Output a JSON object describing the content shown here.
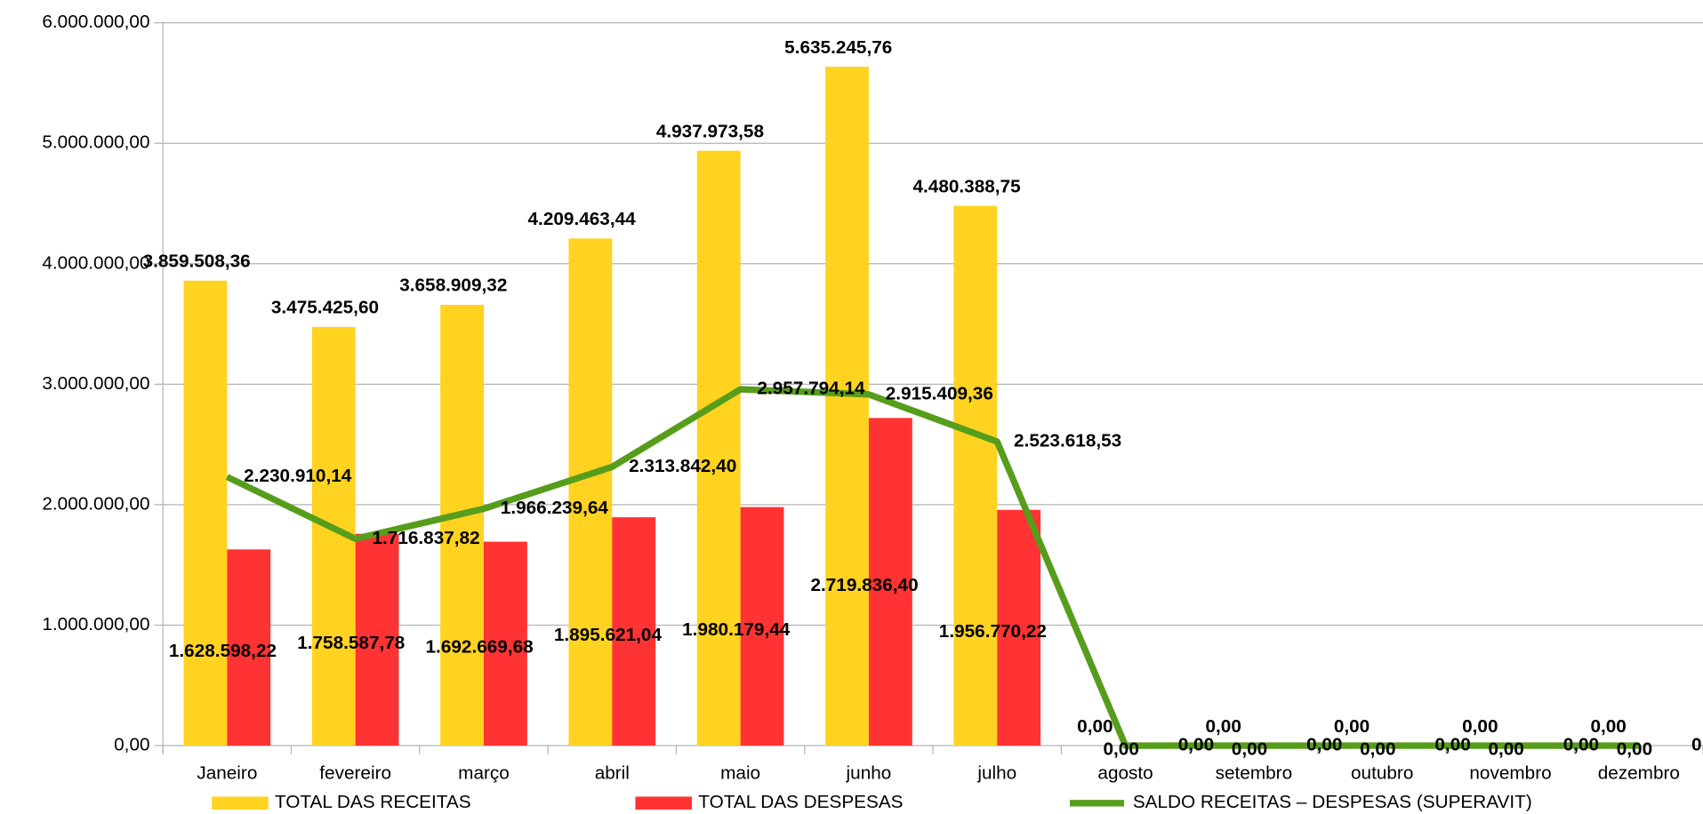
{
  "chart_data": {
    "type": "bar_line",
    "categories": [
      "Janeiro",
      "fevereiro",
      "março",
      "abril",
      "maio",
      "junho",
      "julho",
      "agosto",
      "setembro",
      "outubro",
      "novembro",
      "dezembro"
    ],
    "series": [
      {
        "name": "TOTAL DAS RECEITAS",
        "type": "bar",
        "color": "#ffd320",
        "values": [
          3859508.36,
          3475425.6,
          3658909.32,
          4209463.44,
          4937973.58,
          5635245.76,
          4480388.75,
          0,
          0,
          0,
          0,
          0
        ],
        "value_labels": [
          "3.859.508,36",
          "3.475.425,60",
          "3.658.909,32",
          "4.209.463,44",
          "4.937.973,58",
          "5.635.245,76",
          "4.480.388,75",
          "0,00",
          "0,00",
          "0,00",
          "0,00",
          "0,00"
        ]
      },
      {
        "name": "TOTAL DAS DESPESAS",
        "type": "bar",
        "color": "#ff3333",
        "values": [
          1628598.22,
          1758587.78,
          1692669.68,
          1895621.04,
          1980179.44,
          2719836.4,
          1956770.22,
          0,
          0,
          0,
          0,
          0
        ],
        "value_labels": [
          "1.628.598,22",
          "1.758.587,78",
          "1.692.669,68",
          "1.895.621,04",
          "1.980.179,44",
          "2.719.836,40",
          "1.956.770,22",
          "0,00",
          "0,00",
          "0,00",
          "0,00",
          "0,00"
        ]
      },
      {
        "name": "SALDO RECEITAS – DESPESAS (SUPERAVIT)",
        "type": "line",
        "color": "#579d1c",
        "values": [
          2230910.14,
          1716837.82,
          1966239.64,
          2313842.4,
          2957794.14,
          2915409.36,
          2523618.53,
          0,
          0,
          0,
          0,
          0
        ],
        "value_labels": [
          "2.230.910,14",
          "1.716.837,82",
          "1.966.239,64",
          "2.313.842,40",
          "2.957.794,14",
          "2.915.409,36",
          "2.523.618,53",
          "0,00",
          "0,00",
          "0,00",
          "0,00",
          "0,00"
        ]
      }
    ],
    "ylim": [
      0,
      6000000
    ],
    "yticks": [
      {
        "value": 0,
        "label": "0,00"
      },
      {
        "value": 1000000,
        "label": "1.000.000,00"
      },
      {
        "value": 2000000,
        "label": "2.000.000,00"
      },
      {
        "value": 3000000,
        "label": "3.000.000,00"
      },
      {
        "value": 4000000,
        "label": "4.000.000,00"
      },
      {
        "value": 5000000,
        "label": "5.000.000,00"
      },
      {
        "value": 6000000,
        "label": "6.000.000,00"
      }
    ],
    "grid": true,
    "legend": "bottom"
  }
}
